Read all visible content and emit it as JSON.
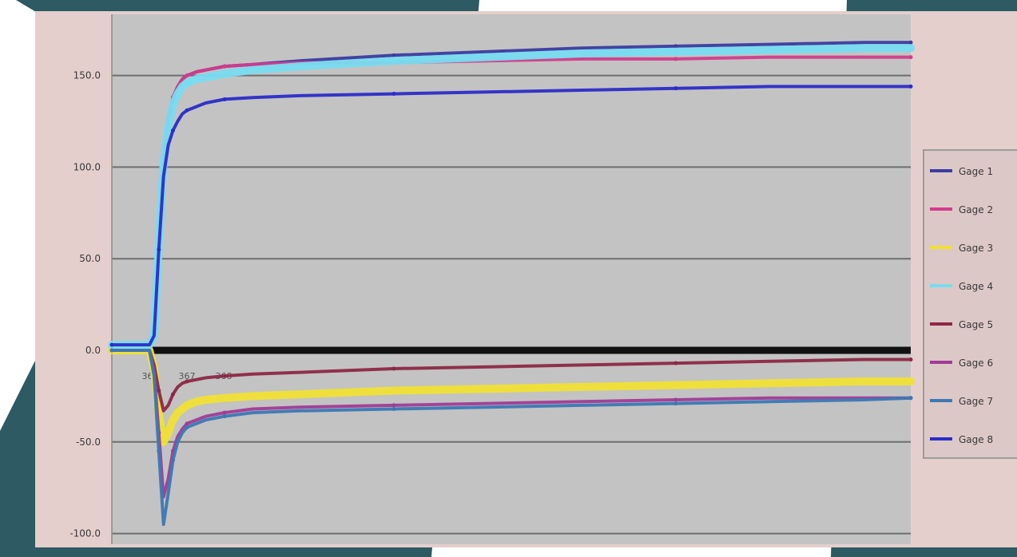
{
  "chart_data": {
    "type": "line",
    "title": "",
    "xlabel": "",
    "ylabel": "",
    "ylim": [
      -200,
      150
    ],
    "yticks": [
      {
        "value": 150,
        "label": "150.0"
      },
      {
        "value": 100,
        "label": "100.0"
      },
      {
        "value": 50,
        "label": "50.0"
      },
      {
        "value": 0,
        "label": "0.0"
      },
      {
        "value": -50,
        "label": "-50.0"
      },
      {
        "value": -100,
        "label": "-100.0"
      }
    ],
    "grid": true,
    "legend": "right",
    "x": [
      0,
      40,
      45,
      50,
      55,
      60,
      65,
      70,
      75,
      80,
      90,
      100,
      120,
      150,
      200,
      300,
      400,
      500,
      600,
      700,
      800,
      850
    ],
    "xticks_visible": [
      "364",
      "367",
      "368"
    ],
    "series": [
      {
        "name": "Gage 1",
        "color": "#3c3ca0",
        "values": [
          3,
          3,
          8,
          60,
          105,
          125,
          138,
          144,
          148,
          150,
          152,
          153,
          155,
          156,
          158,
          161,
          163,
          165,
          166,
          167,
          168,
          168
        ]
      },
      {
        "name": "Gage 2",
        "color": "#d23c8c",
        "values": [
          3,
          3,
          8,
          60,
          105,
          125,
          138,
          144,
          148,
          150,
          152,
          153,
          155,
          156,
          157,
          157,
          158,
          159,
          159,
          160,
          160,
          160
        ]
      },
      {
        "name": "Gage 3",
        "color": "#f0e036",
        "values": [
          0,
          0,
          -10,
          -35,
          -50,
          -45,
          -38,
          -34,
          -32,
          -30,
          -28,
          -27,
          -26,
          -25,
          -24,
          -22,
          -21,
          -20,
          -19,
          -18,
          -17,
          -17
        ]
      },
      {
        "name": "Gage 4",
        "color": "#78dcf0",
        "values": [
          3,
          3,
          8,
          58,
          102,
          122,
          134,
          140,
          144,
          146,
          148,
          149,
          151,
          153,
          155,
          158,
          160,
          162,
          163,
          164,
          165,
          165
        ]
      },
      {
        "name": "Gage 5",
        "color": "#8c2846",
        "values": [
          0,
          0,
          -8,
          -22,
          -33,
          -30,
          -24,
          -20,
          -18,
          -17,
          -16,
          -15,
          -14,
          -13,
          -12,
          -10,
          -9,
          -8,
          -7,
          -6,
          -5,
          -5
        ]
      },
      {
        "name": "Gage 6",
        "color": "#a03c96",
        "values": [
          0,
          0,
          -12,
          -45,
          -80,
          -70,
          -55,
          -47,
          -43,
          -40,
          -38,
          -36,
          -34,
          -32,
          -31,
          -30,
          -29,
          -28,
          -27,
          -26,
          -26,
          -26
        ]
      },
      {
        "name": "Gage 7",
        "color": "#3c78b4",
        "values": [
          0,
          0,
          -14,
          -55,
          -95,
          -78,
          -60,
          -50,
          -45,
          -42,
          -40,
          -38,
          -36,
          -34,
          -33,
          -32,
          -31,
          -30,
          -29,
          -28,
          -27,
          -26
        ]
      },
      {
        "name": "Gage 8",
        "color": "#2c2cc8",
        "values": [
          3,
          3,
          8,
          55,
          95,
          112,
          120,
          125,
          129,
          131,
          133,
          135,
          137,
          138,
          139,
          140,
          141,
          142,
          143,
          144,
          144,
          144
        ]
      }
    ],
    "baseline": {
      "color": "#111111",
      "value": 0
    }
  }
}
